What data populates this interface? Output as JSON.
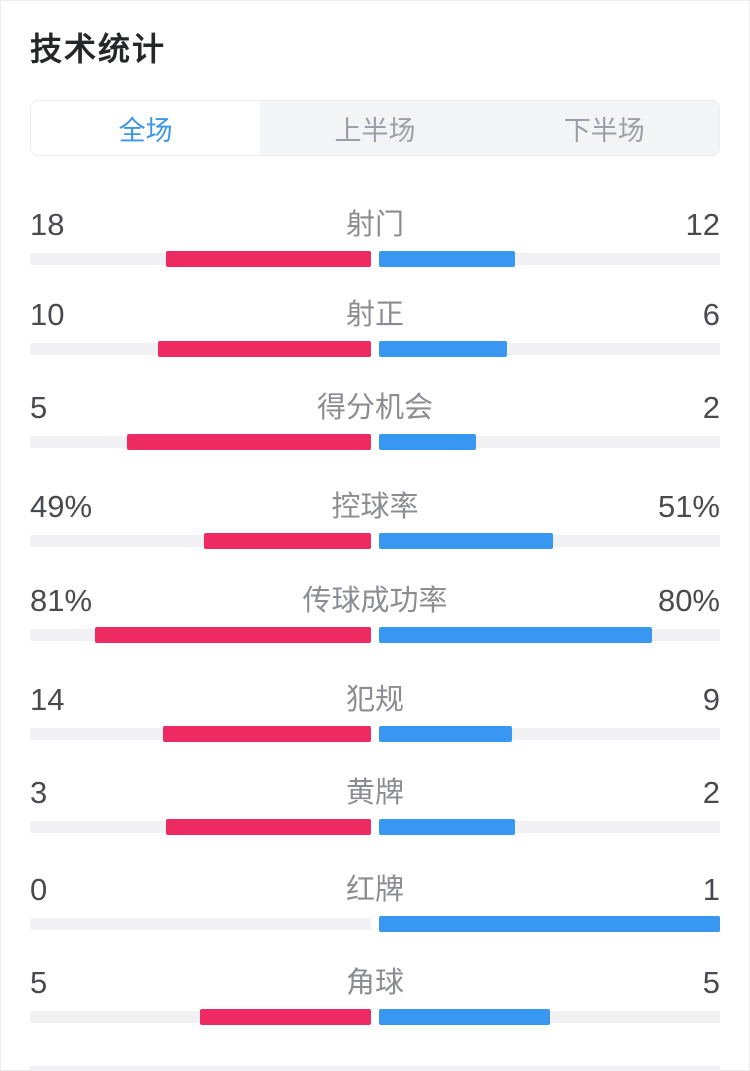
{
  "title": "技术统计",
  "tabs": {
    "items": [
      {
        "label": "全场",
        "active": true
      },
      {
        "label": "上半场",
        "active": false
      },
      {
        "label": "下半场",
        "active": false
      }
    ]
  },
  "stats": [
    {
      "label": "射门",
      "home": "18",
      "away": "12",
      "home_value": 18,
      "away_value": 12,
      "percent": false
    },
    {
      "label": "射正",
      "home": "10",
      "away": "6",
      "home_value": 10,
      "away_value": 6,
      "percent": false
    },
    {
      "label": "得分机会",
      "home": "5",
      "away": "2",
      "home_value": 5,
      "away_value": 2,
      "percent": false
    },
    {
      "label": "控球率",
      "home": "49%",
      "away": "51%",
      "home_value": 49,
      "away_value": 51,
      "percent": true
    },
    {
      "label": "传球成功率",
      "home": "81%",
      "away": "80%",
      "home_value": 81,
      "away_value": 80,
      "percent": true
    },
    {
      "label": "犯规",
      "home": "14",
      "away": "9",
      "home_value": 14,
      "away_value": 9,
      "percent": false
    },
    {
      "label": "黄牌",
      "home": "3",
      "away": "2",
      "home_value": 3,
      "away_value": 2,
      "percent": false
    },
    {
      "label": "红牌",
      "home": "0",
      "away": "1",
      "home_value": 0,
      "away_value": 1,
      "percent": false
    },
    {
      "label": "角球",
      "home": "5",
      "away": "5",
      "home_value": 5,
      "away_value": 5,
      "percent": false
    }
  ],
  "colors": {
    "home_color": "#ed2b62",
    "away_color": "#3897f1",
    "track": "#f1f1f3",
    "number_text": "#4a4b51",
    "label_text": "#8c8d93",
    "title_text": "#26272b",
    "tab_active_text": "#3e97e6",
    "tab_inactive_text": "#9b9fa7",
    "tab_bg": "#f3f4f6",
    "tab_border": "#ececee",
    "page_border": "#ebebed"
  },
  "chart_data": {
    "type": "bar",
    "orientation": "horizontal-paired",
    "title": "技术统计",
    "categories": [
      "射门",
      "射正",
      "得分机会",
      "控球率",
      "传球成功率",
      "犯规",
      "黄牌",
      "红牌",
      "角球"
    ],
    "series": [
      {
        "name": "home-red",
        "color": "#ed2b62",
        "values": [
          18,
          10,
          5,
          49,
          81,
          14,
          3,
          0,
          5
        ]
      },
      {
        "name": "away-blue",
        "color": "#3897f1",
        "values": [
          12,
          6,
          2,
          51,
          80,
          9,
          2,
          1,
          5
        ]
      }
    ],
    "percent_categories": [
      "控球率",
      "传球成功率"
    ],
    "legend_position": "none",
    "grid": false
  }
}
